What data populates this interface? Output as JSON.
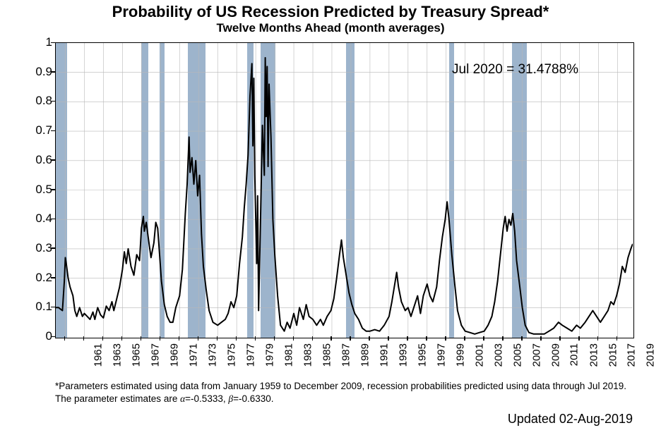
{
  "title": "Probability of US Recession Predicted by Treasury Spread*",
  "subtitle": "Twelve Months Ahead (month averages)",
  "annotation": "Jul 2020 = 31.4788%",
  "footnote_line1": "*Parameters estimated using data from January 1959 to December 2009, recession probabilities predicted using data through Jul 2019.",
  "footnote_line2_prefix": "The parameter estimates are ",
  "alpha_label": "α",
  "alpha_value": "=-0.5333, ",
  "beta_label": "β",
  "beta_value": "=-0.6330.",
  "updated": "Updated 02-Aug-2019",
  "chart": {
    "type": "line",
    "x_min_year": 1960.0,
    "x_max_year": 2020.6,
    "y_min": 0,
    "y_max": 1,
    "y_ticks": [
      0,
      0.1,
      0.2,
      0.3,
      0.4,
      0.5,
      0.6,
      0.7,
      0.8,
      0.9,
      1
    ],
    "x_ticks": [
      1961,
      1963,
      1965,
      1967,
      1969,
      1971,
      1973,
      1975,
      1977,
      1979,
      1981,
      1983,
      1985,
      1987,
      1989,
      1991,
      1993,
      1995,
      1997,
      1999,
      2001,
      2003,
      2005,
      2007,
      2009,
      2011,
      2013,
      2015,
      2017,
      2019
    ],
    "line_color": "#000000",
    "band_color": "#98b0c9",
    "grid_color": "#b8b8b8",
    "background_color": "#ffffff",
    "axis_color": "#000000",
    "title_fontsize": 22,
    "subtitle_fontsize": 17,
    "tick_fontsize": 16,
    "line_width": 2,
    "recession_bands": [
      [
        1960.0,
        1961.15
      ],
      [
        1969.0,
        1969.7
      ],
      [
        1970.9,
        1971.4
      ],
      [
        1973.9,
        1975.7
      ],
      [
        1980.1,
        1980.8
      ],
      [
        1981.5,
        1983.1
      ],
      [
        1990.5,
        1991.4
      ],
      [
        2001.3,
        2001.85
      ],
      [
        2007.95,
        2009.5
      ]
    ],
    "data": [
      [
        1960.0,
        0.1
      ],
      [
        1960.3,
        0.1
      ],
      [
        1960.5,
        0.095
      ],
      [
        1960.7,
        0.09
      ],
      [
        1960.9,
        0.19
      ],
      [
        1961.0,
        0.27
      ],
      [
        1961.1,
        0.25
      ],
      [
        1961.3,
        0.2
      ],
      [
        1961.5,
        0.17
      ],
      [
        1961.8,
        0.14
      ],
      [
        1962.0,
        0.09
      ],
      [
        1962.2,
        0.07
      ],
      [
        1962.5,
        0.1
      ],
      [
        1962.8,
        0.07
      ],
      [
        1963.0,
        0.08
      ],
      [
        1963.3,
        0.07
      ],
      [
        1963.6,
        0.06
      ],
      [
        1963.9,
        0.085
      ],
      [
        1964.1,
        0.06
      ],
      [
        1964.4,
        0.1
      ],
      [
        1964.7,
        0.075
      ],
      [
        1965.0,
        0.065
      ],
      [
        1965.3,
        0.105
      ],
      [
        1965.6,
        0.09
      ],
      [
        1965.9,
        0.12
      ],
      [
        1966.1,
        0.09
      ],
      [
        1966.4,
        0.13
      ],
      [
        1966.7,
        0.17
      ],
      [
        1967.0,
        0.23
      ],
      [
        1967.2,
        0.29
      ],
      [
        1967.4,
        0.25
      ],
      [
        1967.6,
        0.3
      ],
      [
        1967.9,
        0.24
      ],
      [
        1968.2,
        0.21
      ],
      [
        1968.5,
        0.28
      ],
      [
        1968.8,
        0.26
      ],
      [
        1969.0,
        0.37
      ],
      [
        1969.2,
        0.41
      ],
      [
        1969.3,
        0.36
      ],
      [
        1969.5,
        0.39
      ],
      [
        1969.7,
        0.34
      ],
      [
        1970.0,
        0.27
      ],
      [
        1970.3,
        0.32
      ],
      [
        1970.5,
        0.39
      ],
      [
        1970.7,
        0.37
      ],
      [
        1970.9,
        0.28
      ],
      [
        1971.1,
        0.19
      ],
      [
        1971.4,
        0.11
      ],
      [
        1971.7,
        0.07
      ],
      [
        1972.0,
        0.05
      ],
      [
        1972.3,
        0.05
      ],
      [
        1972.6,
        0.1
      ],
      [
        1973.0,
        0.14
      ],
      [
        1973.3,
        0.23
      ],
      [
        1973.6,
        0.42
      ],
      [
        1973.8,
        0.52
      ],
      [
        1974.0,
        0.68
      ],
      [
        1974.1,
        0.56
      ],
      [
        1974.3,
        0.61
      ],
      [
        1974.5,
        0.52
      ],
      [
        1974.7,
        0.6
      ],
      [
        1974.9,
        0.48
      ],
      [
        1975.1,
        0.55
      ],
      [
        1975.3,
        0.35
      ],
      [
        1975.5,
        0.24
      ],
      [
        1975.8,
        0.16
      ],
      [
        1976.1,
        0.09
      ],
      [
        1976.5,
        0.05
      ],
      [
        1977.0,
        0.04
      ],
      [
        1977.4,
        0.05
      ],
      [
        1977.8,
        0.06
      ],
      [
        1978.1,
        0.08
      ],
      [
        1978.4,
        0.12
      ],
      [
        1978.7,
        0.1
      ],
      [
        1979.0,
        0.14
      ],
      [
        1979.3,
        0.25
      ],
      [
        1979.6,
        0.34
      ],
      [
        1979.8,
        0.44
      ],
      [
        1980.0,
        0.52
      ],
      [
        1980.2,
        0.62
      ],
      [
        1980.4,
        0.82
      ],
      [
        1980.6,
        0.93
      ],
      [
        1980.7,
        0.65
      ],
      [
        1980.8,
        0.88
      ],
      [
        1980.9,
        0.55
      ],
      [
        1981.1,
        0.25
      ],
      [
        1981.2,
        0.48
      ],
      [
        1981.3,
        0.09
      ],
      [
        1981.5,
        0.4
      ],
      [
        1981.7,
        0.72
      ],
      [
        1981.9,
        0.55
      ],
      [
        1982.0,
        0.95
      ],
      [
        1982.1,
        0.75
      ],
      [
        1982.2,
        0.92
      ],
      [
        1982.3,
        0.58
      ],
      [
        1982.4,
        0.86
      ],
      [
        1982.6,
        0.68
      ],
      [
        1982.8,
        0.4
      ],
      [
        1983.0,
        0.28
      ],
      [
        1983.3,
        0.14
      ],
      [
        1983.6,
        0.04
      ],
      [
        1984.0,
        0.02
      ],
      [
        1984.3,
        0.05
      ],
      [
        1984.6,
        0.03
      ],
      [
        1985.0,
        0.08
      ],
      [
        1985.3,
        0.04
      ],
      [
        1985.6,
        0.1
      ],
      [
        1986.0,
        0.06
      ],
      [
        1986.3,
        0.11
      ],
      [
        1986.6,
        0.07
      ],
      [
        1987.0,
        0.06
      ],
      [
        1987.4,
        0.04
      ],
      [
        1987.8,
        0.06
      ],
      [
        1988.1,
        0.04
      ],
      [
        1988.5,
        0.07
      ],
      [
        1988.9,
        0.09
      ],
      [
        1989.2,
        0.13
      ],
      [
        1989.5,
        0.2
      ],
      [
        1989.8,
        0.28
      ],
      [
        1990.0,
        0.33
      ],
      [
        1990.2,
        0.27
      ],
      [
        1990.5,
        0.21
      ],
      [
        1990.8,
        0.15
      ],
      [
        1991.1,
        0.11
      ],
      [
        1991.4,
        0.08
      ],
      [
        1991.8,
        0.06
      ],
      [
        1992.2,
        0.03
      ],
      [
        1992.6,
        0.02
      ],
      [
        1993.0,
        0.02
      ],
      [
        1993.5,
        0.025
      ],
      [
        1994.0,
        0.02
      ],
      [
        1994.5,
        0.04
      ],
      [
        1995.0,
        0.07
      ],
      [
        1995.3,
        0.12
      ],
      [
        1995.6,
        0.18
      ],
      [
        1995.8,
        0.22
      ],
      [
        1996.0,
        0.17
      ],
      [
        1996.3,
        0.12
      ],
      [
        1996.7,
        0.09
      ],
      [
        1997.0,
        0.1
      ],
      [
        1997.3,
        0.07
      ],
      [
        1997.7,
        0.11
      ],
      [
        1998.0,
        0.14
      ],
      [
        1998.3,
        0.08
      ],
      [
        1998.6,
        0.14
      ],
      [
        1999.0,
        0.18
      ],
      [
        1999.3,
        0.14
      ],
      [
        1999.6,
        0.12
      ],
      [
        2000.0,
        0.17
      ],
      [
        2000.3,
        0.26
      ],
      [
        2000.6,
        0.34
      ],
      [
        2000.9,
        0.4
      ],
      [
        2001.1,
        0.46
      ],
      [
        2001.3,
        0.4
      ],
      [
        2001.6,
        0.28
      ],
      [
        2001.9,
        0.18
      ],
      [
        2002.2,
        0.09
      ],
      [
        2002.6,
        0.04
      ],
      [
        2003.0,
        0.02
      ],
      [
        2003.5,
        0.015
      ],
      [
        2004.0,
        0.01
      ],
      [
        2004.5,
        0.015
      ],
      [
        2005.0,
        0.02
      ],
      [
        2005.4,
        0.04
      ],
      [
        2005.8,
        0.07
      ],
      [
        2006.1,
        0.12
      ],
      [
        2006.4,
        0.19
      ],
      [
        2006.7,
        0.28
      ],
      [
        2007.0,
        0.37
      ],
      [
        2007.2,
        0.41
      ],
      [
        2007.4,
        0.36
      ],
      [
        2007.6,
        0.4
      ],
      [
        2007.8,
        0.38
      ],
      [
        2008.0,
        0.42
      ],
      [
        2008.2,
        0.36
      ],
      [
        2008.4,
        0.26
      ],
      [
        2008.7,
        0.18
      ],
      [
        2009.0,
        0.1
      ],
      [
        2009.3,
        0.04
      ],
      [
        2009.7,
        0.015
      ],
      [
        2010.2,
        0.01
      ],
      [
        2010.8,
        0.01
      ],
      [
        2011.3,
        0.01
      ],
      [
        2011.8,
        0.02
      ],
      [
        2012.3,
        0.03
      ],
      [
        2012.8,
        0.05
      ],
      [
        2013.2,
        0.04
      ],
      [
        2013.7,
        0.03
      ],
      [
        2014.2,
        0.02
      ],
      [
        2014.7,
        0.04
      ],
      [
        2015.1,
        0.03
      ],
      [
        2015.6,
        0.05
      ],
      [
        2016.0,
        0.07
      ],
      [
        2016.4,
        0.09
      ],
      [
        2016.8,
        0.07
      ],
      [
        2017.2,
        0.05
      ],
      [
        2017.6,
        0.07
      ],
      [
        2018.0,
        0.09
      ],
      [
        2018.3,
        0.12
      ],
      [
        2018.6,
        0.11
      ],
      [
        2018.9,
        0.14
      ],
      [
        2019.2,
        0.18
      ],
      [
        2019.5,
        0.24
      ],
      [
        2019.8,
        0.22
      ],
      [
        2020.1,
        0.27
      ],
      [
        2020.4,
        0.3
      ],
      [
        2020.58,
        0.315
      ]
    ]
  }
}
